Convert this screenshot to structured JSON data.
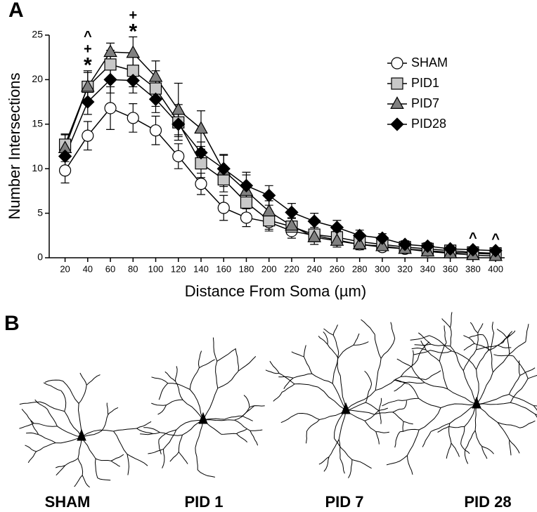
{
  "chart_data": {
    "type": "line",
    "panel_labels": [
      "A",
      "B"
    ],
    "xlabel": "Distance From Soma (µm)",
    "ylabel": "Number Intersections",
    "x": [
      20,
      40,
      60,
      80,
      100,
      120,
      140,
      160,
      180,
      200,
      220,
      240,
      260,
      280,
      300,
      320,
      340,
      360,
      380,
      400
    ],
    "xlim": [
      6,
      408
    ],
    "xticks": [
      20,
      40,
      60,
      80,
      100,
      120,
      140,
      160,
      180,
      200,
      220,
      240,
      260,
      280,
      300,
      320,
      340,
      360,
      380,
      400
    ],
    "ylim": [
      0,
      25
    ],
    "yticks": [
      0,
      5,
      10,
      15,
      20,
      25
    ],
    "legend": "upper right",
    "series": [
      {
        "name": "SHAM",
        "color": "#ffffff",
        "marker": "circle",
        "values": [
          9.8,
          13.7,
          16.8,
          15.7,
          14.3,
          11.4,
          8.3,
          5.6,
          4.5,
          4.0,
          3.0,
          2.5,
          2.0,
          1.5,
          1.2,
          1.0,
          0.8,
          0.6,
          0.5,
          0.4
        ],
        "errors": [
          1.4,
          1.6,
          2.4,
          1.6,
          1.6,
          1.4,
          1.2,
          1.4,
          1.0,
          1.0,
          0.8,
          0.7,
          0.6,
          0.5,
          0.4,
          0.4,
          0.3,
          0.3,
          0.3,
          0.3
        ]
      },
      {
        "name": "PID1",
        "color": "#c8c8c8",
        "marker": "square",
        "values": [
          12.7,
          19.2,
          21.7,
          21.0,
          19.0,
          15.2,
          10.6,
          8.8,
          6.2,
          4.2,
          3.5,
          2.6,
          2.3,
          1.8,
          1.5,
          1.2,
          1.0,
          0.8,
          0.6,
          0.5
        ],
        "errors": [
          1.2,
          1.6,
          1.6,
          1.8,
          2.0,
          2.0,
          1.6,
          1.4,
          1.2,
          1.0,
          0.9,
          0.8,
          0.7,
          0.6,
          0.5,
          0.4,
          0.4,
          0.3,
          0.3,
          0.3
        ]
      },
      {
        "name": "PID7",
        "color": "#808080",
        "marker": "triangle",
        "values": [
          12.3,
          19.2,
          23.1,
          23.0,
          20.3,
          16.6,
          14.5,
          9.8,
          7.5,
          5.2,
          3.6,
          2.3,
          1.9,
          1.5,
          1.3,
          1.0,
          0.7,
          0.5,
          0.3,
          0.2
        ],
        "errors": [
          1.5,
          1.8,
          1.0,
          1.8,
          1.8,
          3.0,
          2.0,
          1.8,
          1.8,
          1.2,
          0.9,
          0.8,
          0.7,
          0.6,
          0.5,
          0.4,
          0.4,
          0.3,
          0.3,
          0.3
        ]
      },
      {
        "name": "PID28",
        "color": "#000000",
        "marker": "diamond",
        "values": [
          11.4,
          17.5,
          20.0,
          19.9,
          17.8,
          15.0,
          11.8,
          10.0,
          8.1,
          7.0,
          5.1,
          4.1,
          3.4,
          2.5,
          2.2,
          1.5,
          1.3,
          1.0,
          0.9,
          0.8
        ],
        "errors": [
          1.2,
          1.4,
          1.5,
          1.4,
          1.5,
          1.2,
          1.2,
          1.5,
          1.5,
          1.1,
          1.0,
          0.9,
          0.8,
          0.6,
          0.5,
          0.4,
          0.4,
          0.3,
          0.3,
          0.3
        ]
      }
    ],
    "annotations": [
      {
        "x": 40,
        "labels": [
          "^",
          "+",
          "*"
        ]
      },
      {
        "x": 80,
        "labels": [
          "+",
          "*"
        ]
      },
      {
        "x": 380,
        "labels": [
          "^"
        ]
      },
      {
        "x": 400,
        "labels": [
          "^"
        ]
      }
    ],
    "neuron_labels": [
      "SHAM",
      "PID 1",
      "PID 7",
      "PID 28"
    ]
  }
}
